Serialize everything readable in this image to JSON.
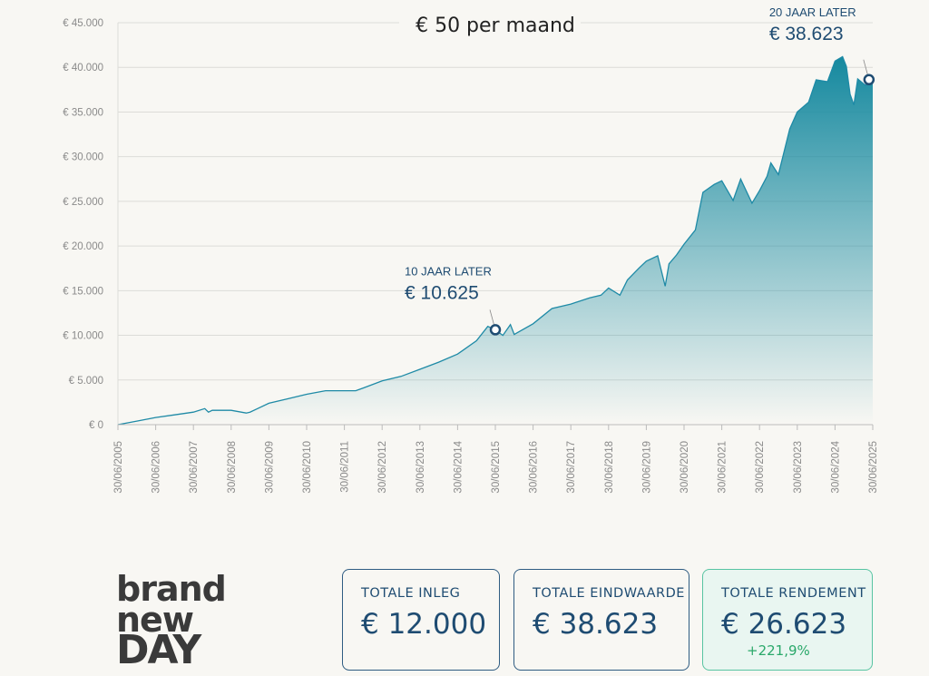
{
  "chart_data": {
    "type": "area",
    "title": "€ 50 per maand",
    "ylim": [
      0,
      45000
    ],
    "y_ticks": [
      0,
      5000,
      10000,
      15000,
      20000,
      25000,
      30000,
      35000,
      40000,
      45000
    ],
    "y_tick_labels": [
      "€ 0",
      "€ 5.000",
      "€ 10.000",
      "€ 15.000",
      "€ 20.000",
      "€ 25.000",
      "€ 30.000",
      "€ 35.000",
      "€ 40.000",
      "€ 45.000"
    ],
    "x_tick_labels": [
      "30/06/2005",
      "30/06/2006",
      "30/06/2007",
      "30/06/2008",
      "30/06/2009",
      "30/06/2010",
      "30/06/2011",
      "30/06/2012",
      "30/06/2013",
      "30/06/2014",
      "30/06/2015",
      "30/06/2016",
      "30/06/2017",
      "30/06/2018",
      "30/06/2019",
      "30/06/2020",
      "30/06/2021",
      "30/06/2022",
      "30/06/2023",
      "30/06/2024",
      "30/06/2025"
    ],
    "xlim": [
      2005.5,
      2025.5
    ],
    "grid": true,
    "series": [
      {
        "x": [
          2005.5,
          2006.0,
          2006.5,
          2007.0,
          2007.5,
          2007.8,
          2007.9,
          2008.0,
          2008.5,
          2008.9,
          2009.0,
          2009.2,
          2009.5,
          2010.0,
          2010.5,
          2011.0,
          2011.5,
          2011.8,
          2012.0,
          2012.5,
          2013.0,
          2013.5,
          2014.0,
          2014.5,
          2015.0,
          2015.3,
          2015.5,
          2015.7,
          2015.9,
          2016.0,
          2016.5,
          2017.0,
          2017.5,
          2018.0,
          2018.3,
          2018.5,
          2018.8,
          2019.0,
          2019.3,
          2019.5,
          2019.8,
          2020.0,
          2020.1,
          2020.3,
          2020.5,
          2020.8,
          2021.0,
          2021.3,
          2021.5,
          2021.8,
          2022.0,
          2022.3,
          2022.5,
          2022.7,
          2022.8,
          2023.0,
          2023.3,
          2023.5,
          2023.8,
          2024.0,
          2024.3,
          2024.5,
          2024.7,
          2024.8,
          2024.9,
          2025.0,
          2025.1,
          2025.3,
          2025.5
        ],
        "y": [
          0,
          400,
          800,
          1100,
          1400,
          1800,
          1400,
          1600,
          1600,
          1300,
          1400,
          1800,
          2400,
          2900,
          3400,
          3800,
          3800,
          3800,
          4100,
          4900,
          5400,
          6200,
          7000,
          7900,
          9400,
          11000,
          10600,
          10000,
          11200,
          10100,
          11300,
          13000,
          13500,
          14200,
          14500,
          15300,
          14500,
          16200,
          17500,
          18300,
          18900,
          15500,
          18000,
          19000,
          20200,
          21800,
          26000,
          26900,
          27300,
          25100,
          27500,
          24800,
          26200,
          27800,
          29300,
          28000,
          33100,
          35000,
          36100,
          38600,
          38400,
          40700,
          41200,
          40100,
          37000,
          35800,
          38700,
          38000,
          38623
        ]
      }
    ],
    "annotations": [
      {
        "label": "10 JAAR LATER",
        "value": "€ 10.625",
        "x": 2015.5,
        "y": 10625
      },
      {
        "label": "20 JAAR LATER",
        "value": "€ 38.623",
        "x": 2025.4,
        "y": 38623
      }
    ]
  },
  "logo": {
    "line1": "brand",
    "line2": "new",
    "line3": "DAY"
  },
  "cards": {
    "inleg": {
      "label": "TOTALE INLEG",
      "value": "€ 12.000"
    },
    "eindwaarde": {
      "label": "TOTALE EINDWAARDE",
      "value": "€ 38.623"
    },
    "rendement": {
      "label": "TOTALE RENDEMENT",
      "value": "€ 26.623",
      "pct": "+221,9%"
    }
  },
  "colors": {
    "line": "#1e8aa6",
    "area_top": "#1a93ab",
    "axis_text": "#888888",
    "grid": "#d9d9d6",
    "annot": "#1f4c72",
    "pct": "#2aa86a"
  }
}
